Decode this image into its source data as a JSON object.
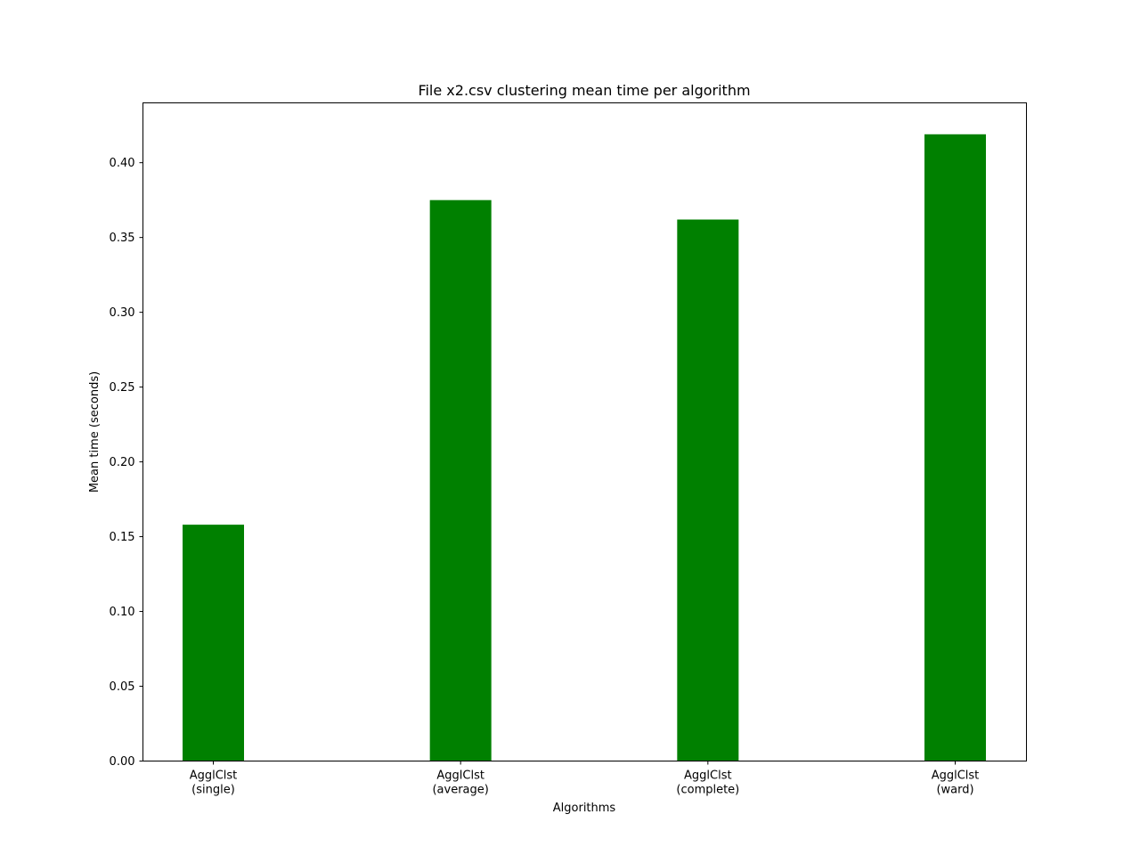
{
  "chart_data": {
    "type": "bar",
    "title": "File x2.csv clustering mean time per algorithm",
    "xlabel": "Algorithms",
    "ylabel": "Mean time (seconds)",
    "categories": [
      [
        "AgglClst",
        "(single)"
      ],
      [
        "AgglClst",
        "(average)"
      ],
      [
        "AgglClst",
        "(complete)"
      ],
      [
        "AgglClst",
        "(ward)"
      ]
    ],
    "values": [
      0.158,
      0.375,
      0.362,
      0.419
    ],
    "ylim": [
      0,
      0.44
    ],
    "yticks": [
      "0.00",
      "0.05",
      "0.10",
      "0.15",
      "0.20",
      "0.25",
      "0.30",
      "0.35",
      "0.40"
    ],
    "bar_color": "#008000",
    "grid": false
  }
}
